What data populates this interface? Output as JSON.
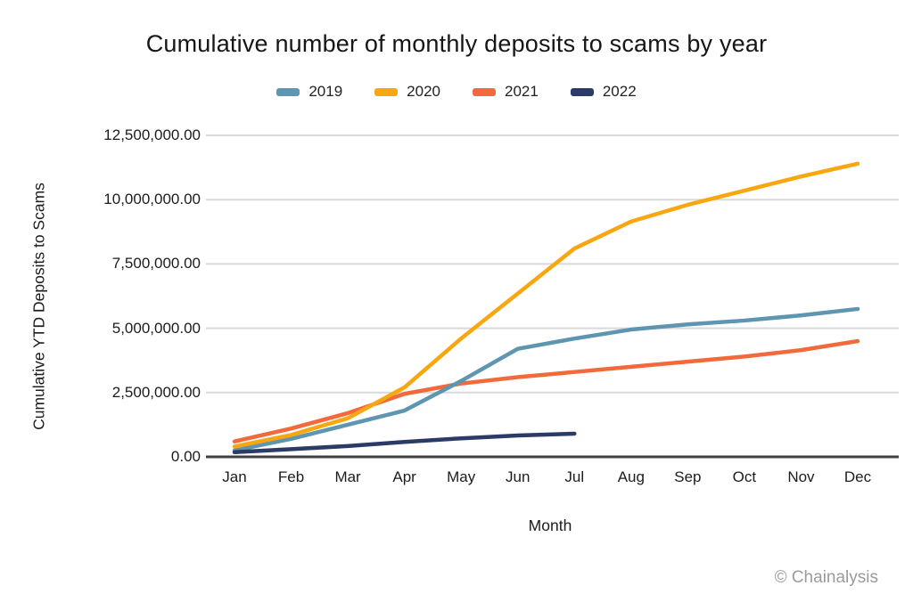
{
  "watermark": "© Chainalysis",
  "chart_data": {
    "type": "line",
    "title": "Cumulative number of monthly deposits to scams by year",
    "xlabel": "Month",
    "ylabel": "Cumulative YTD Deposits to Scams",
    "categories": [
      "Jan",
      "Feb",
      "Mar",
      "Apr",
      "May",
      "Jun",
      "Jul",
      "Aug",
      "Sep",
      "Oct",
      "Nov",
      "Dec"
    ],
    "ylim": [
      0,
      12500000
    ],
    "ytick_step": 2500000,
    "ytick_labels": [
      "0.00",
      "2,500,000.00",
      "5,000,000.00",
      "7,500,000.00",
      "10,000,000.00",
      "12,500,000.00"
    ],
    "grid": true,
    "legend_position": "top",
    "series": [
      {
        "name": "2019",
        "color": "#5e95b0",
        "values": [
          250000,
          700000,
          1250000,
          1800000,
          2950000,
          4200000,
          4600000,
          4950000,
          5150000,
          5300000,
          5500000,
          5750000
        ]
      },
      {
        "name": "2020",
        "color": "#f8a711",
        "values": [
          400000,
          850000,
          1500000,
          2700000,
          4600000,
          6350000,
          8100000,
          9150000,
          9800000,
          10350000,
          10900000,
          11400000
        ]
      },
      {
        "name": "2021",
        "color": "#f2693b",
        "values": [
          600000,
          1100000,
          1700000,
          2450000,
          2850000,
          3100000,
          3300000,
          3500000,
          3700000,
          3900000,
          4150000,
          4500000
        ]
      },
      {
        "name": "2022",
        "color": "#2b3a67",
        "values": [
          180000,
          300000,
          420000,
          580000,
          720000,
          830000,
          900000,
          null,
          null,
          null,
          null,
          null
        ]
      }
    ],
    "grid_color": "#d9d9d9",
    "baseline_color": "#3f3f3f"
  }
}
